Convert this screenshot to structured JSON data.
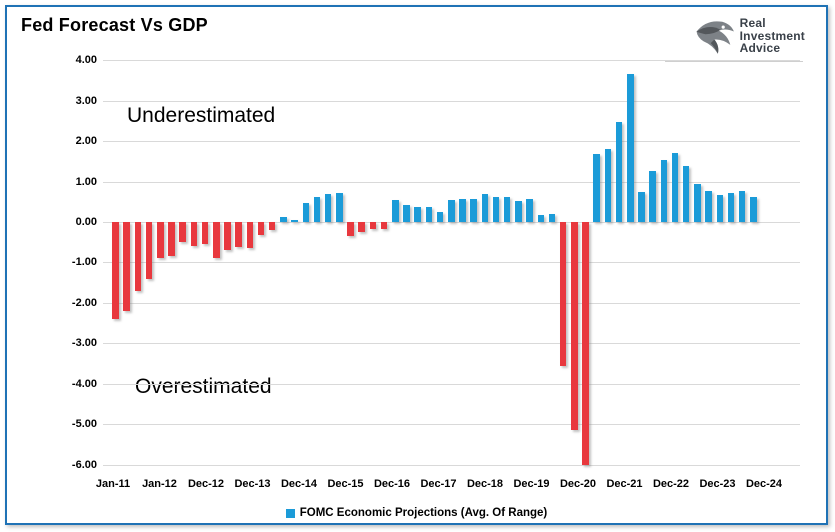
{
  "title": "Fed Forecast Vs GDP",
  "logo": {
    "line1": "Real",
    "line2": "Investment",
    "line3": "Advice"
  },
  "annotations": {
    "underestimated": "Underestimated",
    "overestimated": "Overestimated"
  },
  "legend": {
    "label": "FOMC Economic Projections (Avg. Of Range)"
  },
  "colors": {
    "positive_bar": "#1B9BD8",
    "negative_bar": "#E8383E",
    "frame_border": "#1F72B5",
    "gridline": "#D9D9D9",
    "logo_text": "#3A4149"
  },
  "chart_data": {
    "type": "bar",
    "title": "Fed Forecast Vs GDP",
    "series_name": "FOMC Economic Projections (Avg. Of Range)",
    "xlabel": "",
    "ylabel": "",
    "ylim": [
      -6,
      4
    ],
    "grid": "horizontal",
    "legend_position": "bottom-center",
    "y_tick_labels": [
      "4.00",
      "3.00",
      "2.00",
      "1.00",
      "0.00",
      "-1.00",
      "-2.00",
      "-3.00",
      "-4.00",
      "-5.00",
      "-6.00"
    ],
    "x_tick_labels": [
      "Jan-11",
      "Jan-12",
      "Dec-12",
      "Dec-13",
      "Dec-14",
      "Dec-15",
      "Dec-16",
      "Dec-17",
      "Dec-18",
      "Dec-19",
      "Dec-20",
      "Dec-21",
      "Dec-22",
      "Dec-23",
      "Dec-24"
    ],
    "positive_region_label": "Underestimated",
    "negative_region_label": "Overestimated",
    "values": [
      -2.4,
      -2.2,
      -1.7,
      -1.4,
      -0.9,
      -0.85,
      -0.5,
      -0.6,
      -0.55,
      -0.9,
      -0.7,
      -0.63,
      -0.65,
      -0.32,
      -0.2,
      0.12,
      0.05,
      0.46,
      0.61,
      0.69,
      0.72,
      -0.35,
      -0.24,
      -0.18,
      -0.18,
      0.54,
      0.42,
      0.36,
      0.38,
      0.25,
      0.54,
      0.58,
      0.56,
      0.69,
      0.62,
      0.61,
      0.52,
      0.56,
      0.17,
      0.19,
      -3.55,
      -5.15,
      -6.0,
      1.68,
      1.8,
      2.46,
      3.65,
      0.73,
      1.26,
      1.53,
      1.7,
      1.38,
      0.93,
      0.77,
      0.67,
      0.71,
      0.77,
      0.61
    ]
  }
}
